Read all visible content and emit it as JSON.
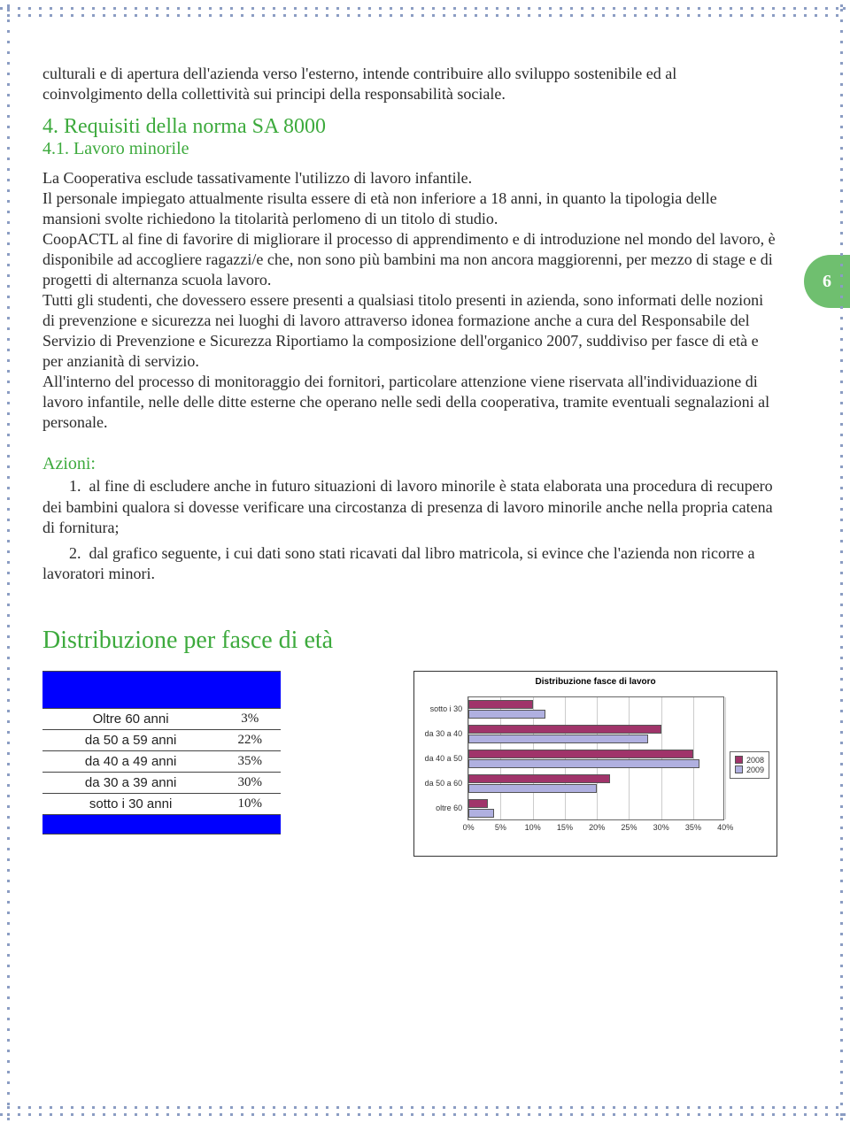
{
  "page_number": "6",
  "intro_para": "culturali e di apertura dell'azienda verso l'esterno, intende contribuire allo sviluppo sostenibile ed al coinvolgimento della collettività sui principi della responsabilità sociale.",
  "heading4": "4. Requisiti della norma SA 8000",
  "heading41": "4.1. Lavoro minorile",
  "body_para": "La Cooperativa esclude tassativamente l'utilizzo di lavoro infantile.\nIl personale impiegato attualmente risulta essere di età non inferiore a 18 anni, in quanto la tipologia delle mansioni svolte richiedono la titolarità perlomeno di un titolo di studio.\nCoopACTL al fine di favorire di migliorare il processo di apprendimento e di introduzione nel mondo del lavoro, è disponibile ad accogliere ragazzi/e che,  non sono più bambini ma non ancora maggiorenni, per mezzo di stage e di progetti di alternanza scuola lavoro.\nTutti gli studenti, che dovessero essere presenti a qualsiasi titolo presenti in azienda, sono informati delle nozioni di prevenzione e sicurezza nei luoghi di lavoro attraverso idonea formazione anche a cura del Responsabile del Servizio di Prevenzione e Sicurezza Riportiamo la composizione dell'organico 2007, suddiviso per fasce di età e per anzianità di servizio.\nAll'interno del processo di monitoraggio dei fornitori, particolare attenzione viene riservata all'individuazione di lavoro infantile, nelle delle ditte esterne che operano nelle sedi della cooperativa, tramite eventuali segnalazioni al personale.",
  "azioni_label": "Azioni:",
  "azione1_num": "1.",
  "azione1": "al fine di escludere anche in futuro situazioni di lavoro minorile è stata elaborata una procedura di recupero dei bambini qualora si dovesse verificare una circostanza di presenza di lavoro minorile anche nella propria catena di fornitura;",
  "azione2_num": "2.",
  "azione2": "dal grafico seguente, i cui dati sono stati ricavati dal libro matricola, si evince che l'azienda non ricorre a lavoratori minori.",
  "dist_title": "Distribuzione per fasce di età",
  "table": {
    "rows": [
      {
        "label": "Oltre 60 anni",
        "value": "3%"
      },
      {
        "label": "da 50 a 59 anni",
        "value": "22%"
      },
      {
        "label": "da 40 a 49 anni",
        "value": "35%"
      },
      {
        "label": "da 30 a 39 anni",
        "value": "30%"
      },
      {
        "label": "sotto i 30 anni",
        "value": "10%"
      }
    ],
    "header_color": "#0000ff"
  },
  "chart": {
    "type": "bar-horizontal-grouped",
    "title": "Distribuzione fasce di lavoro",
    "categories": [
      "sotto i 30",
      "da 30 a 40",
      "da 40 a 50",
      "da 50 a 60",
      "oltre 60"
    ],
    "series": [
      {
        "name": "2008",
        "color": "#a0346a",
        "values_pct": [
          10,
          30,
          35,
          22,
          3
        ]
      },
      {
        "name": "2009",
        "color": "#b0b0e0",
        "values_pct": [
          12,
          28,
          36,
          20,
          4
        ]
      }
    ],
    "xlim": [
      0,
      40
    ],
    "xtick_step": 5,
    "x_ticks": [
      "0%",
      "5%",
      "10%",
      "15%",
      "20%",
      "25%",
      "30%",
      "35%",
      "40%"
    ],
    "grid_color": "#cccccc",
    "border_color": "#666666",
    "background_color": "#ffffff",
    "title_fontsize": 10,
    "label_fontsize": 9
  }
}
